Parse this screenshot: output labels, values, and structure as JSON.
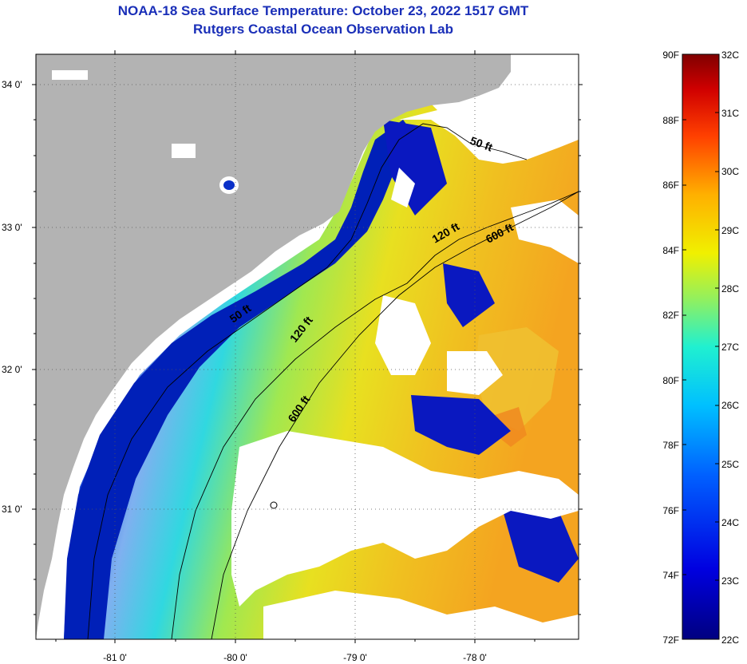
{
  "title": "NOAA-18 Sea Surface Temperature:  October 23, 2022 1517 GMT",
  "subtitle": "Rutgers Coastal Ocean Observation Lab",
  "lat_labels": [
    "34 0'",
    "33 0'",
    "32 0'",
    "31 0'"
  ],
  "lon_labels": [
    "-81 0'",
    "-80 0'",
    "-79 0'",
    "-78 0'"
  ],
  "contour_labels": [
    "50 ft",
    "120 ft",
    "600 ft",
    "50 ft",
    "120 ft",
    "600 ft"
  ],
  "colorbar": {
    "fahrenheit_labels": [
      "90F",
      "88F",
      "86F",
      "84F",
      "82F",
      "80F",
      "78F",
      "76F",
      "74F",
      "72F"
    ],
    "celsius_labels": [
      "32C",
      "31C",
      "30C",
      "29C",
      "28C",
      "27C",
      "26C",
      "25C",
      "24C",
      "23C",
      "22C"
    ],
    "range_f": [
      72,
      90
    ],
    "range_c": [
      22,
      32
    ]
  },
  "colors": {
    "land": "#b3b3b3",
    "title": "#1a2fb8",
    "cold": "#0010a0",
    "warm": "#e8d020",
    "hot": "#f07a10"
  }
}
